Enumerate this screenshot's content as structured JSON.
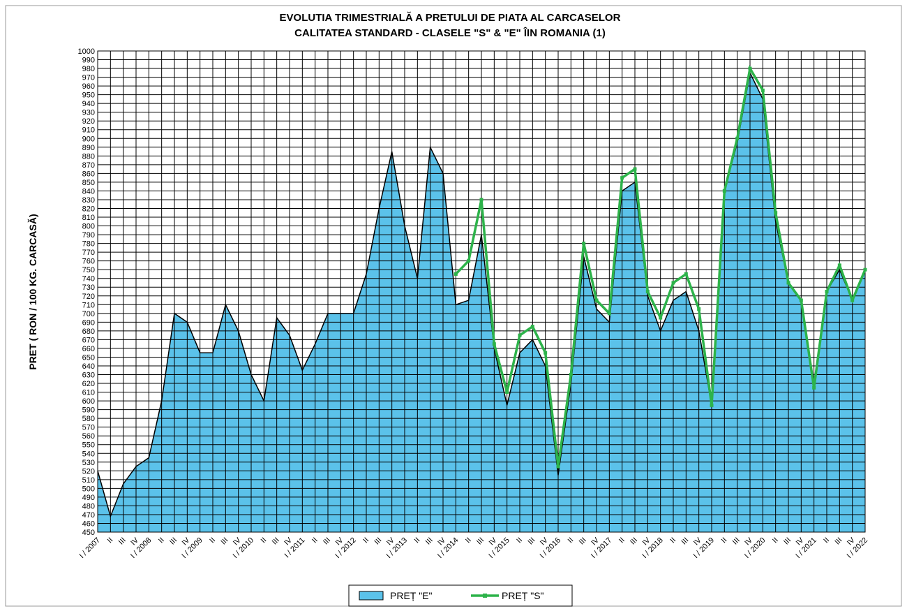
{
  "chart_data": {
    "type": "area-line",
    "title": "EVOLUTIA TRIMESTRIALĂ A PRETULUI  DE PIATA AL CARCASELOR",
    "subtitle": "CALITATEA STANDARD - CLASELE \"S\" & \"E\"  ÎIN ROMANIA (1)",
    "y_label": "PRET ( RON / 100 KG. CARCASĂ)",
    "categories": [
      "I / 2007",
      "II",
      "III",
      "IV",
      "I / 2008",
      "II",
      "III",
      "IV",
      "I / 2009",
      "II",
      "III",
      "IV",
      "I / 2010",
      "II",
      "III",
      "IV",
      "I / 2011",
      "II",
      "III",
      "IV",
      "I / 2012",
      "II",
      "III",
      "IV",
      "I / 2013",
      "II",
      "III",
      "IV",
      "I / 2014",
      "II",
      "III",
      "IV",
      "I / 2015",
      "II",
      "III",
      "IV",
      "I / 2016",
      "II",
      "III",
      "IV",
      "I / 2017",
      "II",
      "III",
      "IV",
      "I / 2018",
      "II",
      "III",
      "IV",
      "I / 2019",
      "II",
      "III",
      "IV",
      "I / 2020",
      "II",
      "III",
      "IV",
      "I / 2021",
      "II",
      "III",
      "IV",
      "I / 2022"
    ],
    "series": [
      {
        "name": "PREȚ \"E\"",
        "kind": "area",
        "color": "#5bc2ea",
        "values": [
          520,
          468,
          505,
          525,
          535,
          600,
          700,
          690,
          655,
          655,
          710,
          680,
          630,
          600,
          695,
          675,
          635,
          665,
          700,
          700,
          700,
          745,
          820,
          885,
          800,
          740,
          890,
          860,
          710,
          715,
          790,
          660,
          595,
          655,
          670,
          640,
          515,
          620,
          765,
          705,
          690,
          840,
          850,
          720,
          680,
          715,
          725,
          680,
          595,
          840,
          895,
          975,
          945,
          805,
          735,
          715,
          620,
          725,
          750,
          715,
          750
        ]
      },
      {
        "name": "PREȚ \"S\"",
        "kind": "line",
        "color": "#2db34a",
        "values": [
          null,
          null,
          null,
          null,
          null,
          null,
          null,
          null,
          null,
          null,
          null,
          null,
          null,
          null,
          null,
          null,
          null,
          null,
          null,
          null,
          null,
          null,
          null,
          null,
          null,
          null,
          null,
          null,
          745,
          760,
          830,
          665,
          610,
          675,
          685,
          655,
          525,
          630,
          780,
          715,
          700,
          855,
          865,
          725,
          695,
          735,
          745,
          705,
          595,
          840,
          900,
          980,
          955,
          815,
          735,
          715,
          615,
          725,
          755,
          715,
          750
        ]
      }
    ],
    "ylim": [
      450,
      1000
    ],
    "yticks": [
      450,
      460,
      470,
      480,
      490,
      500,
      510,
      520,
      530,
      540,
      550,
      560,
      570,
      580,
      590,
      600,
      610,
      620,
      630,
      640,
      650,
      660,
      670,
      680,
      690,
      700,
      710,
      720,
      730,
      740,
      750,
      760,
      770,
      780,
      790,
      800,
      810,
      820,
      830,
      840,
      850,
      860,
      870,
      880,
      890,
      900,
      910,
      920,
      930,
      940,
      950,
      960,
      970,
      980,
      990,
      1000
    ],
    "grid": true
  }
}
